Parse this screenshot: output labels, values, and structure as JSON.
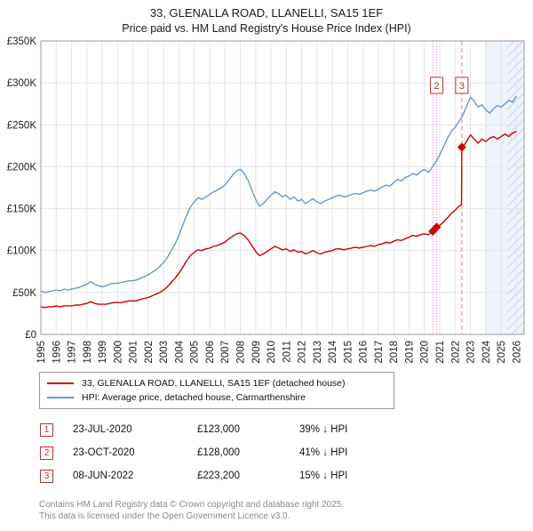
{
  "header": {
    "title": "33, GLENALLA ROAD, LLANELLI, SA15 1EF",
    "subtitle": "Price paid vs. HM Land Registry's House Price Index (HPI)"
  },
  "chart_data": {
    "type": "line",
    "x_range": [
      1995,
      2026.5
    ],
    "ylim": [
      0,
      350
    ],
    "units": "GBP thousands",
    "grid": true,
    "y_ticks": [
      {
        "label": "£0",
        "value": 0
      },
      {
        "label": "£50K",
        "value": 50
      },
      {
        "label": "£100K",
        "value": 100
      },
      {
        "label": "£150K",
        "value": 150
      },
      {
        "label": "£200K",
        "value": 200
      },
      {
        "label": "£250K",
        "value": 250
      },
      {
        "label": "£300K",
        "value": 300
      },
      {
        "label": "£350K",
        "value": 350
      }
    ],
    "x_ticks": [
      1995,
      1996,
      1997,
      1998,
      1999,
      2000,
      2001,
      2002,
      2003,
      2004,
      2005,
      2006,
      2007,
      2008,
      2009,
      2010,
      2011,
      2012,
      2013,
      2014,
      2015,
      2016,
      2017,
      2018,
      2019,
      2020,
      2021,
      2022,
      2023,
      2024,
      2025,
      2026
    ],
    "series": [
      {
        "name": "33, GLENALLA ROAD, LLANELLI, SA15 1EF (detached house)",
        "color": "#cc0000",
        "points": [
          [
            1995,
            33
          ],
          [
            1995.25,
            32
          ],
          [
            1995.5,
            33
          ],
          [
            1995.75,
            33
          ],
          [
            1996,
            34
          ],
          [
            1996.25,
            33
          ],
          [
            1996.5,
            34
          ],
          [
            1996.75,
            34
          ],
          [
            1997,
            34
          ],
          [
            1997.25,
            35
          ],
          [
            1997.5,
            35
          ],
          [
            1997.75,
            36
          ],
          [
            1998,
            37
          ],
          [
            1998.25,
            39
          ],
          [
            1998.5,
            37
          ],
          [
            1998.75,
            36
          ],
          [
            1999,
            36
          ],
          [
            1999.25,
            36
          ],
          [
            1999.5,
            37
          ],
          [
            1999.75,
            38
          ],
          [
            2000,
            38
          ],
          [
            2000.25,
            38
          ],
          [
            2000.5,
            39
          ],
          [
            2000.75,
            40
          ],
          [
            2001,
            40
          ],
          [
            2001.25,
            40
          ],
          [
            2001.5,
            42
          ],
          [
            2001.75,
            43
          ],
          [
            2002,
            44
          ],
          [
            2002.25,
            46
          ],
          [
            2002.5,
            48
          ],
          [
            2002.75,
            50
          ],
          [
            2003,
            53
          ],
          [
            2003.25,
            57
          ],
          [
            2003.5,
            62
          ],
          [
            2003.75,
            67
          ],
          [
            2004,
            73
          ],
          [
            2004.25,
            80
          ],
          [
            2004.5,
            88
          ],
          [
            2004.75,
            94
          ],
          [
            2005,
            98
          ],
          [
            2005.25,
            101
          ],
          [
            2005.5,
            100
          ],
          [
            2005.75,
            102
          ],
          [
            2006,
            103
          ],
          [
            2006.25,
            105
          ],
          [
            2006.5,
            106
          ],
          [
            2006.75,
            108
          ],
          [
            2007,
            110
          ],
          [
            2007.25,
            114
          ],
          [
            2007.5,
            117
          ],
          [
            2007.75,
            120
          ],
          [
            2008,
            121
          ],
          [
            2008.25,
            118
          ],
          [
            2008.5,
            113
          ],
          [
            2008.75,
            106
          ],
          [
            2009,
            99
          ],
          [
            2009.25,
            94
          ],
          [
            2009.5,
            96
          ],
          [
            2009.75,
            99
          ],
          [
            2010,
            102
          ],
          [
            2010.25,
            105
          ],
          [
            2010.5,
            103
          ],
          [
            2010.75,
            101
          ],
          [
            2011,
            102
          ],
          [
            2011.25,
            99
          ],
          [
            2011.5,
            101
          ],
          [
            2011.75,
            98
          ],
          [
            2012,
            99
          ],
          [
            2012.25,
            96
          ],
          [
            2012.5,
            98
          ],
          [
            2012.75,
            100
          ],
          [
            2013,
            97
          ],
          [
            2013.25,
            96
          ],
          [
            2013.5,
            98
          ],
          [
            2013.75,
            99
          ],
          [
            2014,
            100
          ],
          [
            2014.25,
            102
          ],
          [
            2014.5,
            102
          ],
          [
            2014.75,
            101
          ],
          [
            2015,
            102
          ],
          [
            2015.25,
            103
          ],
          [
            2015.5,
            104
          ],
          [
            2015.75,
            103
          ],
          [
            2016,
            104
          ],
          [
            2016.25,
            105
          ],
          [
            2016.5,
            106
          ],
          [
            2016.75,
            105
          ],
          [
            2017,
            107
          ],
          [
            2017.25,
            108
          ],
          [
            2017.5,
            110
          ],
          [
            2017.75,
            109
          ],
          [
            2018,
            111
          ],
          [
            2018.25,
            113
          ],
          [
            2018.5,
            112
          ],
          [
            2018.75,
            114
          ],
          [
            2019,
            116
          ],
          [
            2019.25,
            118
          ],
          [
            2019.5,
            117
          ],
          [
            2019.75,
            119
          ],
          [
            2020,
            120
          ],
          [
            2020.25,
            119
          ],
          [
            2020.55,
            123
          ],
          [
            2020.8,
            128
          ],
          [
            2021,
            130
          ],
          [
            2021.25,
            134
          ],
          [
            2021.5,
            139
          ],
          [
            2021.75,
            144
          ],
          [
            2022,
            148
          ],
          [
            2022.2,
            152
          ],
          [
            2022.42,
            155
          ],
          [
            2022.44,
            223.2
          ],
          [
            2022.6,
            226
          ],
          [
            2022.75,
            230
          ],
          [
            2023,
            238
          ],
          [
            2023.25,
            233
          ],
          [
            2023.5,
            228
          ],
          [
            2023.75,
            233
          ],
          [
            2024,
            230
          ],
          [
            2024.25,
            234
          ],
          [
            2024.5,
            236
          ],
          [
            2024.75,
            233
          ],
          [
            2025,
            236
          ],
          [
            2025.25,
            239
          ],
          [
            2025.5,
            236
          ],
          [
            2025.75,
            240
          ],
          [
            2026,
            242
          ]
        ]
      },
      {
        "name": "HPI: Average price, detached house, Carmarthenshire",
        "color": "#6699cc",
        "points": [
          [
            1995,
            52
          ],
          [
            1995.25,
            50
          ],
          [
            1995.5,
            51
          ],
          [
            1995.75,
            52
          ],
          [
            1996,
            53
          ],
          [
            1996.25,
            52
          ],
          [
            1996.5,
            54
          ],
          [
            1996.75,
            53
          ],
          [
            1997,
            54
          ],
          [
            1997.25,
            55
          ],
          [
            1997.5,
            56
          ],
          [
            1997.75,
            58
          ],
          [
            1998,
            60
          ],
          [
            1998.25,
            63
          ],
          [
            1998.5,
            60
          ],
          [
            1998.75,
            58
          ],
          [
            1999,
            57
          ],
          [
            1999.25,
            58
          ],
          [
            1999.5,
            60
          ],
          [
            1999.75,
            61
          ],
          [
            2000,
            61
          ],
          [
            2000.25,
            62
          ],
          [
            2000.5,
            63
          ],
          [
            2000.75,
            64
          ],
          [
            2001,
            64
          ],
          [
            2001.25,
            65
          ],
          [
            2001.5,
            67
          ],
          [
            2001.75,
            69
          ],
          [
            2002,
            71
          ],
          [
            2002.25,
            74
          ],
          [
            2002.5,
            77
          ],
          [
            2002.75,
            81
          ],
          [
            2003,
            86
          ],
          [
            2003.25,
            92
          ],
          [
            2003.5,
            100
          ],
          [
            2003.75,
            108
          ],
          [
            2004,
            118
          ],
          [
            2004.25,
            130
          ],
          [
            2004.5,
            142
          ],
          [
            2004.75,
            152
          ],
          [
            2005,
            158
          ],
          [
            2005.25,
            163
          ],
          [
            2005.5,
            161
          ],
          [
            2005.75,
            164
          ],
          [
            2006,
            167
          ],
          [
            2006.25,
            170
          ],
          [
            2006.5,
            172
          ],
          [
            2006.75,
            175
          ],
          [
            2007,
            178
          ],
          [
            2007.25,
            184
          ],
          [
            2007.5,
            190
          ],
          [
            2007.75,
            195
          ],
          [
            2008,
            197
          ],
          [
            2008.25,
            192
          ],
          [
            2008.5,
            184
          ],
          [
            2008.75,
            172
          ],
          [
            2009,
            161
          ],
          [
            2009.25,
            153
          ],
          [
            2009.5,
            156
          ],
          [
            2009.75,
            161
          ],
          [
            2010,
            166
          ],
          [
            2010.25,
            170
          ],
          [
            2010.5,
            168
          ],
          [
            2010.75,
            164
          ],
          [
            2011,
            166
          ],
          [
            2011.25,
            161
          ],
          [
            2011.5,
            164
          ],
          [
            2011.75,
            159
          ],
          [
            2012,
            161
          ],
          [
            2012.25,
            156
          ],
          [
            2012.5,
            159
          ],
          [
            2012.75,
            162
          ],
          [
            2013,
            158
          ],
          [
            2013.25,
            156
          ],
          [
            2013.5,
            159
          ],
          [
            2013.75,
            161
          ],
          [
            2014,
            163
          ],
          [
            2014.25,
            165
          ],
          [
            2014.5,
            166
          ],
          [
            2014.75,
            164
          ],
          [
            2015,
            165
          ],
          [
            2015.25,
            167
          ],
          [
            2015.5,
            168
          ],
          [
            2015.75,
            167
          ],
          [
            2016,
            169
          ],
          [
            2016.25,
            171
          ],
          [
            2016.5,
            172
          ],
          [
            2016.75,
            171
          ],
          [
            2017,
            173
          ],
          [
            2017.25,
            176
          ],
          [
            2017.5,
            178
          ],
          [
            2017.75,
            177
          ],
          [
            2018,
            181
          ],
          [
            2018.25,
            185
          ],
          [
            2018.5,
            183
          ],
          [
            2018.75,
            187
          ],
          [
            2019,
            189
          ],
          [
            2019.25,
            192
          ],
          [
            2019.5,
            190
          ],
          [
            2019.75,
            194
          ],
          [
            2020,
            197
          ],
          [
            2020.25,
            193
          ],
          [
            2020.5,
            199
          ],
          [
            2020.75,
            206
          ],
          [
            2021,
            214
          ],
          [
            2021.25,
            224
          ],
          [
            2021.5,
            234
          ],
          [
            2021.75,
            242
          ],
          [
            2022,
            247
          ],
          [
            2022.25,
            254
          ],
          [
            2022.5,
            261
          ],
          [
            2022.75,
            272
          ],
          [
            2023,
            283
          ],
          [
            2023.25,
            278
          ],
          [
            2023.5,
            271
          ],
          [
            2023.75,
            274
          ],
          [
            2024,
            268
          ],
          [
            2024.25,
            264
          ],
          [
            2024.5,
            269
          ],
          [
            2024.75,
            273
          ],
          [
            2025,
            271
          ],
          [
            2025.25,
            275
          ],
          [
            2025.5,
            279
          ],
          [
            2025.75,
            277
          ],
          [
            2026,
            284
          ]
        ]
      }
    ],
    "marker_color": "#cc0000",
    "markers": [
      {
        "label": "1",
        "x": 2020.55,
        "y": 123
      },
      {
        "label": "2",
        "x": 2020.8,
        "y": 128
      },
      {
        "label": "3",
        "x": 2022.44,
        "y": 223.2
      }
    ],
    "vlines": [
      {
        "x": 2020.55,
        "color": "#cc77cc",
        "dash": "1,2"
      },
      {
        "x": 2020.8,
        "color": "#cc77cc",
        "dash": "1,2"
      },
      {
        "x": 2022.44,
        "color": "#e08080",
        "dash": "5,3"
      }
    ],
    "callouts": [
      {
        "label": "2",
        "x": 2020.8,
        "y": 297
      },
      {
        "label": "3",
        "x": 2022.44,
        "y": 297
      }
    ],
    "future_band_start": 2024,
    "hatch_start": 2025.42
  },
  "legend": [
    {
      "label": "33, GLENALLA ROAD, LLANELLI, SA15 1EF (detached house)",
      "color": "#cc0000"
    },
    {
      "label": "HPI: Average price, detached house, Carmarthenshire",
      "color": "#6699cc"
    }
  ],
  "transactions": [
    {
      "num": "1",
      "date": "23-JUL-2020",
      "price": "£123,000",
      "hpi": "39% ↓ HPI"
    },
    {
      "num": "2",
      "date": "23-OCT-2020",
      "price": "£128,000",
      "hpi": "41% ↓ HPI"
    },
    {
      "num": "3",
      "date": "08-JUN-2022",
      "price": "£223,200",
      "hpi": "15% ↓ HPI"
    }
  ],
  "footer": {
    "line1": "Contains HM Land Registry data © Crown copyright and database right 2025.",
    "line2": "This data is licensed under the Open Government Licence v3.0."
  }
}
